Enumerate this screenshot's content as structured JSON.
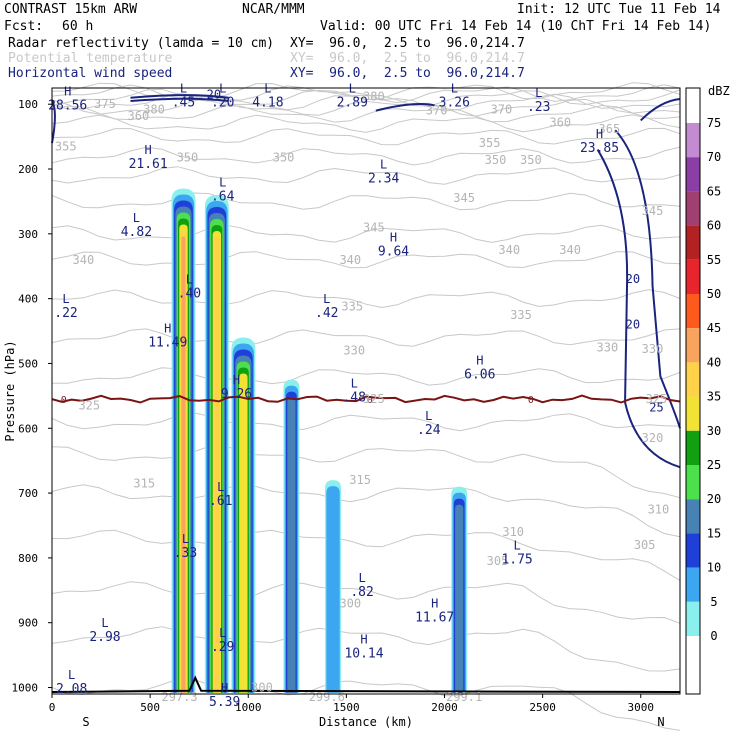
{
  "header": {
    "model": "CONTRAST 15km ARW",
    "center": "NCAR/MMM",
    "init": "Init: 12 UTC Tue 11 Feb 14",
    "fcst_label": "Fcst:",
    "fcst_value": "60 h",
    "valid": "Valid: 00 UTC Fri 14 Feb 14 (10 ChT Fri 14 Feb 14)",
    "fields": [
      {
        "name": "Radar reflectivity (lamda = 10 cm)",
        "xy": "XY=  96.0,  2.5 to  96.0,214.7",
        "color": "#000000"
      },
      {
        "name": "Potential temperature",
        "xy": "XY=  96.0,  2.5 to  96.0,214.7",
        "color": "#c8c8c8"
      },
      {
        "name": "Horizontal wind speed",
        "xy": "XY=  96.0,  2.5 to  96.0,214.7",
        "color": "#1a237e"
      }
    ]
  },
  "chart_data": {
    "type": "cross-section",
    "xlabel": "Distance (km)",
    "ylabel": "Pressure (hPa)",
    "xlim": [
      0,
      3200
    ],
    "ylim": [
      1010,
      75
    ],
    "xticks": [
      "0",
      "500",
      "1000",
      "1500",
      "2000",
      "2500",
      "3000"
    ],
    "xtick_values": [
      0,
      500,
      1000,
      1500,
      2000,
      2500,
      3000
    ],
    "yticks": [
      "100",
      "200",
      "300",
      "400",
      "500",
      "600",
      "700",
      "800",
      "900",
      "1000"
    ],
    "ytick_values": [
      100,
      200,
      300,
      400,
      500,
      600,
      700,
      800,
      900,
      1000
    ],
    "x_end_labels": {
      "left": "S",
      "right": "N"
    },
    "colorbar": {
      "unit": "dBZ",
      "levels": [
        "75",
        "70",
        "65",
        "60",
        "55",
        "50",
        "45",
        "40",
        "35",
        "30",
        "25",
        "20",
        "15",
        "10",
        "5",
        "0"
      ],
      "level_values": [
        75,
        70,
        65,
        60,
        55,
        50,
        45,
        40,
        35,
        30,
        25,
        20,
        15,
        10,
        5,
        0
      ],
      "colors": [
        "#c38bd1",
        "#8b3fa6",
        "#a04070",
        "#b22222",
        "#e8242d",
        "#ff5a1e",
        "#f9a45e",
        "#ffd24a",
        "#f2e233",
        "#10a010",
        "#4de04d",
        "#4682b4",
        "#1e3fd8",
        "#3ca6f0",
        "#8af0ee",
        "#ffffff"
      ]
    },
    "reflectivity_cells": [
      {
        "x": 670,
        "p_top": 230,
        "max_dbz": 45
      },
      {
        "x": 840,
        "p_top": 240,
        "max_dbz": 40
      },
      {
        "x": 975,
        "p_top": 460,
        "max_dbz": 35
      },
      {
        "x": 1220,
        "p_top": 525,
        "max_dbz": 20
      },
      {
        "x": 1432,
        "p_top": 680,
        "max_dbz": 10
      },
      {
        "x": 2075,
        "p_top": 690,
        "max_dbz": 20
      }
    ],
    "freezing_level": {
      "label": "0",
      "p": 555,
      "color": "#7a1414"
    },
    "theta_labels": [
      {
        "x": 520,
        "p": 108,
        "t": "380"
      },
      {
        "x": 270,
        "p": 100,
        "t": "375"
      },
      {
        "x": 1640,
        "p": 88,
        "t": "380"
      },
      {
        "x": 2290,
        "p": 108,
        "t": "370"
      },
      {
        "x": 1960,
        "p": 110,
        "t": "370"
      },
      {
        "x": 440,
        "p": 118,
        "t": "360"
      },
      {
        "x": 2590,
        "p": 128,
        "t": "360"
      },
      {
        "x": 70,
        "p": 165,
        "t": "355"
      },
      {
        "x": 2230,
        "p": 160,
        "t": "355"
      },
      {
        "x": 2840,
        "p": 138,
        "t": "365"
      },
      {
        "x": 690,
        "p": 182,
        "t": "350"
      },
      {
        "x": 1180,
        "p": 182,
        "t": "350"
      },
      {
        "x": 2260,
        "p": 186,
        "t": "350"
      },
      {
        "x": 2440,
        "p": 186,
        "t": "350"
      },
      {
        "x": 2100,
        "p": 245,
        "t": "345"
      },
      {
        "x": 1640,
        "p": 290,
        "t": "345"
      },
      {
        "x": 3060,
        "p": 265,
        "t": "345"
      },
      {
        "x": 160,
        "p": 340,
        "t": "340"
      },
      {
        "x": 1520,
        "p": 340,
        "t": "340"
      },
      {
        "x": 2330,
        "p": 325,
        "t": "340"
      },
      {
        "x": 2640,
        "p": 325,
        "t": "340"
      },
      {
        "x": 1530,
        "p": 412,
        "t": "335"
      },
      {
        "x": 2390,
        "p": 425,
        "t": "335"
      },
      {
        "x": 1540,
        "p": 480,
        "t": "330"
      },
      {
        "x": 2830,
        "p": 475,
        "t": "330"
      },
      {
        "x": 3060,
        "p": 478,
        "t": "330"
      },
      {
        "x": 190,
        "p": 565,
        "t": "325"
      },
      {
        "x": 1640,
        "p": 555,
        "t": "325"
      },
      {
        "x": 3080,
        "p": 555,
        "t": "325"
      },
      {
        "x": 3060,
        "p": 615,
        "t": "320"
      },
      {
        "x": 470,
        "p": 685,
        "t": "315"
      },
      {
        "x": 1570,
        "p": 680,
        "t": "315"
      },
      {
        "x": 3090,
        "p": 725,
        "t": "310"
      },
      {
        "x": 2350,
        "p": 760,
        "t": "310"
      },
      {
        "x": 2270,
        "p": 805,
        "t": "305"
      },
      {
        "x": 3020,
        "p": 780,
        "t": "305"
      },
      {
        "x": 1520,
        "p": 870,
        "t": "300"
      },
      {
        "x": 1070,
        "p": 1000,
        "t": "300"
      },
      {
        "x": 650,
        "p": 1015,
        "t": "297.3"
      },
      {
        "x": 1400,
        "p": 1015,
        "t": "299.6"
      },
      {
        "x": 2100,
        "p": 1015,
        "t": "299.1"
      }
    ],
    "extrema": [
      {
        "x": 80,
        "p": 90,
        "type": "H",
        "value": "28.56"
      },
      {
        "x": 670,
        "p": 85,
        "type": "L",
        "value": ".45"
      },
      {
        "x": 870,
        "p": 85,
        "type": "L",
        "value": ".20"
      },
      {
        "x": 1100,
        "p": 85,
        "type": "L",
        "value": "4.18"
      },
      {
        "x": 1530,
        "p": 85,
        "type": "L",
        "value": "2.89"
      },
      {
        "x": 2050,
        "p": 85,
        "type": "L",
        "value": "3.26"
      },
      {
        "x": 2480,
        "p": 92,
        "type": "L",
        "value": ".23"
      },
      {
        "x": 2790,
        "p": 155,
        "type": "H",
        "value": "23.85"
      },
      {
        "x": 490,
        "p": 180,
        "type": "H",
        "value": "21.61"
      },
      {
        "x": 870,
        "p": 230,
        "type": "L",
        "value": ".64"
      },
      {
        "x": 1690,
        "p": 202,
        "type": "L",
        "value": "2.34"
      },
      {
        "x": 430,
        "p": 285,
        "type": "L",
        "value": "4.82"
      },
      {
        "x": 1740,
        "p": 315,
        "type": "H",
        "value": "9.64"
      },
      {
        "x": 700,
        "p": 380,
        "type": "L",
        "value": ".40"
      },
      {
        "x": 0,
        "p": 410,
        "type": "L",
        "value": ".22"
      },
      {
        "x": 1400,
        "p": 410,
        "type": "L",
        "value": ".42"
      },
      {
        "x": 590,
        "p": 455,
        "type": "H",
        "value": "11.49"
      },
      {
        "x": 2180,
        "p": 505,
        "type": "H",
        "value": "6.06"
      },
      {
        "x": 940,
        "p": 535,
        "type": "H",
        "value": "9.26"
      },
      {
        "x": 1540,
        "p": 540,
        "type": "L",
        "value": ".48"
      },
      {
        "x": 1920,
        "p": 590,
        "type": "L",
        "value": ".24"
      },
      {
        "x": 860,
        "p": 700,
        "type": "L",
        "value": ".61"
      },
      {
        "x": 680,
        "p": 780,
        "type": "L",
        "value": ".33"
      },
      {
        "x": 2370,
        "p": 790,
        "type": "L",
        "value": "1.75"
      },
      {
        "x": 1580,
        "p": 840,
        "type": "L",
        "value": ".82"
      },
      {
        "x": 1950,
        "p": 880,
        "type": "H",
        "value": "11.67"
      },
      {
        "x": 270,
        "p": 910,
        "type": "L",
        "value": "2.98"
      },
      {
        "x": 1590,
        "p": 935,
        "type": "H",
        "value": "10.14"
      },
      {
        "x": 870,
        "p": 925,
        "type": "L",
        "value": ".29"
      },
      {
        "x": 100,
        "p": 990,
        "type": "L",
        "value": "2.08"
      },
      {
        "x": 880,
        "p": 1010,
        "type": "H",
        "value": "5.39"
      }
    ],
    "wind_labels": [
      {
        "x": 825,
        "p": 85,
        "t": "20"
      },
      {
        "x": 2960,
        "p": 370,
        "t": "20"
      },
      {
        "x": 2960,
        "p": 440,
        "t": "20"
      },
      {
        "x": 3080,
        "p": 568,
        "t": "25"
      }
    ]
  }
}
